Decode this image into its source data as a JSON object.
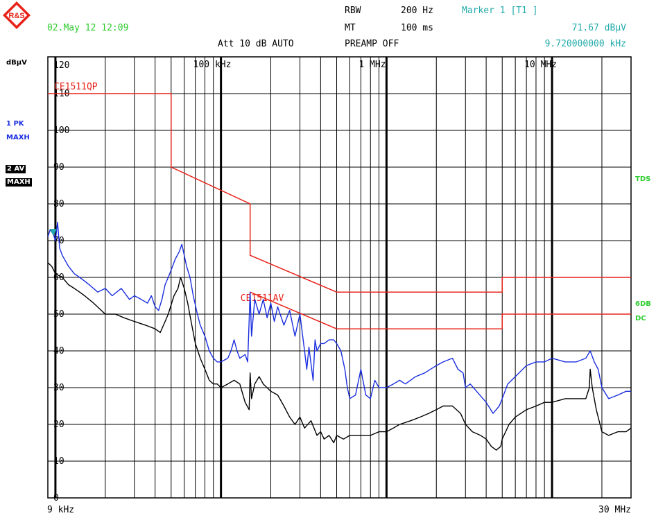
{
  "header": {
    "date": "02.May 12 12:09",
    "rbw_label": "RBW",
    "rbw_value": "200 Hz",
    "mt_label": "MT",
    "mt_value": "100 ms",
    "att": "Att 10 dB AUTO",
    "preamp": "PREAMP OFF",
    "marker_title": "Marker 1 [T1 ]",
    "marker_level": "71.67 dBµV",
    "marker_freq": "9.720000000 kHz",
    "logo_text": "R&S"
  },
  "side_labels": {
    "unit": "dBµV",
    "trace1_a": "1 PK",
    "trace1_b": "MAXH",
    "trace2_a": "2 AV",
    "trace2_b": "MAXH",
    "tds": "TDS",
    "sixdb": "6DB",
    "dc": "DC"
  },
  "colors": {
    "trace1": "#1a2ee0",
    "trace2": "#000000",
    "limit": "#e8231a",
    "green": "#2ecc2e",
    "cyan": "#22aaaa"
  },
  "chart_data": {
    "type": "line",
    "x_scale": "log",
    "xlim_hz": [
      9000,
      30000000
    ],
    "ylim": [
      0,
      120
    ],
    "ylabel": "dBµV",
    "grid": true,
    "x_start_label": "9 kHz",
    "x_end_label": "30 MHz",
    "x_tick_labels": [
      {
        "freq_hz": 100000,
        "label": "100 kHz"
      },
      {
        "freq_hz": 1000000,
        "label": "1 MHz"
      },
      {
        "freq_hz": 10000000,
        "label": "10 MHz"
      }
    ],
    "y_tick_labels": [
      "0",
      "10",
      "20",
      "30",
      "40",
      "50",
      "60",
      "70",
      "80",
      "90",
      "100",
      "110",
      "120"
    ],
    "limit_lines": [
      {
        "name": "CE1511QP",
        "points": [
          [
            9000,
            110
          ],
          [
            50000,
            110
          ],
          [
            50000,
            90
          ],
          [
            150000,
            80
          ],
          [
            150000,
            66
          ],
          [
            500000,
            56
          ],
          [
            5000000,
            56
          ],
          [
            5000000,
            60
          ],
          [
            30000000,
            60
          ]
        ]
      },
      {
        "name": "CE1511AV",
        "points": [
          [
            150000,
            56
          ],
          [
            500000,
            46
          ],
          [
            5000000,
            46
          ],
          [
            5000000,
            50
          ],
          [
            30000000,
            50
          ]
        ]
      }
    ],
    "series": [
      {
        "name": "1 PK MAXH",
        "points": [
          [
            9000,
            71
          ],
          [
            9300,
            73
          ],
          [
            9720,
            71.67
          ],
          [
            10000,
            70
          ],
          [
            10300,
            75
          ],
          [
            10600,
            68
          ],
          [
            11000,
            66
          ],
          [
            12000,
            63
          ],
          [
            13000,
            61
          ],
          [
            14000,
            60
          ],
          [
            15000,
            59
          ],
          [
            16000,
            58
          ],
          [
            18000,
            56
          ],
          [
            20000,
            57
          ],
          [
            22000,
            55
          ],
          [
            25000,
            57
          ],
          [
            28000,
            54
          ],
          [
            30000,
            55
          ],
          [
            33000,
            54
          ],
          [
            36000,
            53
          ],
          [
            38000,
            55
          ],
          [
            40000,
            52
          ],
          [
            42000,
            51
          ],
          [
            44000,
            54
          ],
          [
            46000,
            58
          ],
          [
            48000,
            60
          ],
          [
            50000,
            62
          ],
          [
            53000,
            65
          ],
          [
            56000,
            67
          ],
          [
            58000,
            69
          ],
          [
            60000,
            66
          ],
          [
            62000,
            63
          ],
          [
            65000,
            60
          ],
          [
            68000,
            55
          ],
          [
            72000,
            50
          ],
          [
            75000,
            47
          ],
          [
            80000,
            44
          ],
          [
            85000,
            40
          ],
          [
            90000,
            38
          ],
          [
            95000,
            37
          ],
          [
            100000,
            37
          ],
          [
            110000,
            38
          ],
          [
            115000,
            40
          ],
          [
            120000,
            43
          ],
          [
            125000,
            40
          ],
          [
            130000,
            38
          ],
          [
            140000,
            39
          ],
          [
            145000,
            37
          ],
          [
            150000,
            56
          ],
          [
            153000,
            44
          ],
          [
            160000,
            54
          ],
          [
            170000,
            50
          ],
          [
            180000,
            54
          ],
          [
            190000,
            49
          ],
          [
            200000,
            53
          ],
          [
            210000,
            48
          ],
          [
            220000,
            52
          ],
          [
            240000,
            47
          ],
          [
            260000,
            51
          ],
          [
            280000,
            44
          ],
          [
            300000,
            50
          ],
          [
            320000,
            40
          ],
          [
            330000,
            35
          ],
          [
            340000,
            41
          ],
          [
            360000,
            32
          ],
          [
            370000,
            43
          ],
          [
            380000,
            40
          ],
          [
            400000,
            42
          ],
          [
            420000,
            42
          ],
          [
            450000,
            43
          ],
          [
            480000,
            43
          ],
          [
            500000,
            42
          ],
          [
            530000,
            40
          ],
          [
            560000,
            35
          ],
          [
            580000,
            30
          ],
          [
            600000,
            27
          ],
          [
            650000,
            28
          ],
          [
            700000,
            35
          ],
          [
            750000,
            28
          ],
          [
            800000,
            27
          ],
          [
            850000,
            32
          ],
          [
            900000,
            30
          ],
          [
            1000000,
            30
          ],
          [
            1100000,
            31
          ],
          [
            1200000,
            32
          ],
          [
            1300000,
            31
          ],
          [
            1500000,
            33
          ],
          [
            1700000,
            34
          ],
          [
            2000000,
            36
          ],
          [
            2200000,
            37
          ],
          [
            2500000,
            38
          ],
          [
            2700000,
            35
          ],
          [
            2900000,
            34
          ],
          [
            3000000,
            30
          ],
          [
            3200000,
            31
          ],
          [
            3500000,
            29
          ],
          [
            4000000,
            26
          ],
          [
            4400000,
            23
          ],
          [
            4800000,
            25
          ],
          [
            5000000,
            27
          ],
          [
            5400000,
            31
          ],
          [
            6000000,
            33
          ],
          [
            7000000,
            36
          ],
          [
            8000000,
            37
          ],
          [
            9000000,
            37
          ],
          [
            10000000,
            38
          ],
          [
            12000000,
            37
          ],
          [
            14000000,
            37
          ],
          [
            16000000,
            38
          ],
          [
            17000000,
            40
          ],
          [
            18000000,
            37
          ],
          [
            19000000,
            35
          ],
          [
            20000000,
            30
          ],
          [
            22000000,
            27
          ],
          [
            25000000,
            28
          ],
          [
            28000000,
            29
          ],
          [
            30000000,
            29
          ]
        ]
      },
      {
        "name": "2 AV MAXH",
        "points": [
          [
            9000,
            64
          ],
          [
            9500,
            63
          ],
          [
            10000,
            61
          ],
          [
            11000,
            60
          ],
          [
            12000,
            58
          ],
          [
            13000,
            57
          ],
          [
            14000,
            56
          ],
          [
            15000,
            55
          ],
          [
            17000,
            53
          ],
          [
            20000,
            50
          ],
          [
            23000,
            50
          ],
          [
            26000,
            49
          ],
          [
            30000,
            48
          ],
          [
            35000,
            47
          ],
          [
            40000,
            46
          ],
          [
            43000,
            45
          ],
          [
            46000,
            48
          ],
          [
            48000,
            50
          ],
          [
            52000,
            55
          ],
          [
            55000,
            57
          ],
          [
            57000,
            60
          ],
          [
            60000,
            57
          ],
          [
            63000,
            53
          ],
          [
            66000,
            48
          ],
          [
            70000,
            42
          ],
          [
            75000,
            38
          ],
          [
            80000,
            35
          ],
          [
            85000,
            32
          ],
          [
            90000,
            31
          ],
          [
            95000,
            31
          ],
          [
            100000,
            30
          ],
          [
            110000,
            31
          ],
          [
            120000,
            32
          ],
          [
            130000,
            31
          ],
          [
            140000,
            26
          ],
          [
            148000,
            24
          ],
          [
            150000,
            34
          ],
          [
            153000,
            27
          ],
          [
            160000,
            31
          ],
          [
            170000,
            33
          ],
          [
            180000,
            31
          ],
          [
            200000,
            29
          ],
          [
            220000,
            28
          ],
          [
            240000,
            25
          ],
          [
            260000,
            22
          ],
          [
            280000,
            20
          ],
          [
            300000,
            22
          ],
          [
            320000,
            19
          ],
          [
            350000,
            21
          ],
          [
            380000,
            17
          ],
          [
            400000,
            18
          ],
          [
            420000,
            16
          ],
          [
            450000,
            17
          ],
          [
            480000,
            15
          ],
          [
            500000,
            17
          ],
          [
            550000,
            16
          ],
          [
            600000,
            17
          ],
          [
            700000,
            17
          ],
          [
            800000,
            17
          ],
          [
            900000,
            18
          ],
          [
            1000000,
            18
          ],
          [
            1100000,
            19
          ],
          [
            1200000,
            20
          ],
          [
            1400000,
            21
          ],
          [
            1600000,
            22
          ],
          [
            1800000,
            23
          ],
          [
            2000000,
            24
          ],
          [
            2200000,
            25
          ],
          [
            2500000,
            25
          ],
          [
            2800000,
            23
          ],
          [
            3000000,
            20
          ],
          [
            3300000,
            18
          ],
          [
            3700000,
            17
          ],
          [
            4000000,
            16
          ],
          [
            4300000,
            14
          ],
          [
            4600000,
            13
          ],
          [
            4900000,
            14
          ],
          [
            5000000,
            16
          ],
          [
            5500000,
            20
          ],
          [
            6000000,
            22
          ],
          [
            7000000,
            24
          ],
          [
            8000000,
            25
          ],
          [
            9000000,
            26
          ],
          [
            10000000,
            26
          ],
          [
            12000000,
            27
          ],
          [
            14000000,
            27
          ],
          [
            16000000,
            27
          ],
          [
            16800000,
            30
          ],
          [
            17000000,
            35
          ],
          [
            17500000,
            30
          ],
          [
            18500000,
            24
          ],
          [
            20000000,
            18
          ],
          [
            22000000,
            17
          ],
          [
            25000000,
            18
          ],
          [
            28000000,
            18
          ],
          [
            30000000,
            19
          ]
        ]
      }
    ]
  }
}
